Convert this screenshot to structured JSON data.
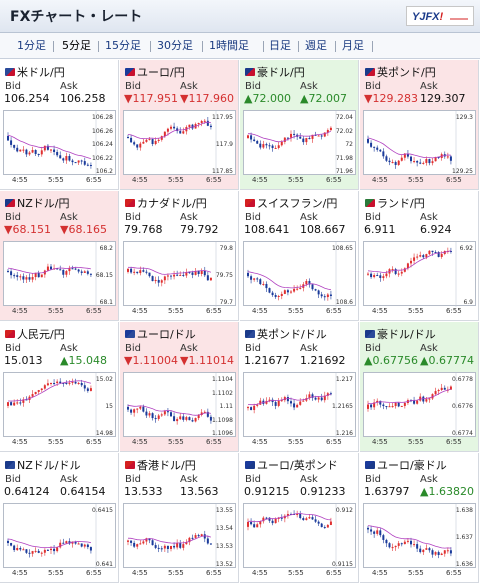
{
  "header": {
    "title": "FXチャート・レート",
    "logo": "YJFX!"
  },
  "tabs": [
    "1分足",
    "5分足",
    "15分足",
    "30分足",
    "1時間足",
    "日足",
    "週足",
    "月足"
  ],
  "labels": {
    "bid": "Bid",
    "ask": "Ask"
  },
  "pairs": [
    {
      "name": "米ドル/円",
      "flag": [
        "#2a4a9a",
        "#c8102e"
      ],
      "bid": "106.254",
      "ask": "106.258",
      "bid_dir": "",
      "ask_dir": "",
      "yticks": [
        "106.28",
        "106.26",
        "106.24",
        "106.22",
        "106.2"
      ],
      "xticks": [
        "4:55",
        "5:55",
        "6:55"
      ],
      "state": "flat"
    },
    {
      "name": "ユーロ/円",
      "flag": [
        "#1a3a9a",
        "#c8102e"
      ],
      "bid": "▼117.951",
      "ask": "▼117.960",
      "bid_dir": "down",
      "ask_dir": "down",
      "yticks": [
        "117.95",
        "117.9",
        "117.85"
      ],
      "xticks": [
        "4:55",
        "5:55",
        "6:55"
      ],
      "state": "down"
    },
    {
      "name": "豪ドル/円",
      "flag": [
        "#1a3a8a",
        "#c8102e"
      ],
      "bid": "▲72.000",
      "ask": "▲72.007",
      "bid_dir": "up",
      "ask_dir": "up",
      "yticks": [
        "72.04",
        "72.02",
        "72",
        "71.98",
        "71.96"
      ],
      "xticks": [
        "4:55",
        "5:55",
        "6:55"
      ],
      "state": "up"
    },
    {
      "name": "英ポンド/円",
      "flag": [
        "#1a3a8a",
        "#c8102e"
      ],
      "bid": "▼129.283",
      "ask": "129.307",
      "bid_dir": "down",
      "ask_dir": "",
      "yticks": [
        "129.3",
        "129.25"
      ],
      "xticks": [
        "4:55",
        "5:55",
        "6:55"
      ],
      "state": "down"
    },
    {
      "name": "NZドル/円",
      "flag": [
        "#1a3a8a",
        "#c8102e"
      ],
      "bid": "▼68.151",
      "ask": "▼68.165",
      "bid_dir": "down",
      "ask_dir": "down",
      "yticks": [
        "68.2",
        "68.15",
        "68.1"
      ],
      "xticks": [
        "4:55",
        "5:55",
        "6:55"
      ],
      "state": "down"
    },
    {
      "name": "カナダドル/円",
      "flag": [
        "#d42020",
        "#c8102e"
      ],
      "bid": "79.768",
      "ask": "79.792",
      "bid_dir": "",
      "ask_dir": "",
      "yticks": [
        "79.8",
        "79.75",
        "79.7"
      ],
      "xticks": [
        "4:55",
        "5:55",
        "6:55"
      ],
      "state": "flat"
    },
    {
      "name": "スイスフラン/円",
      "flag": [
        "#d42020",
        "#c8102e"
      ],
      "bid": "108.641",
      "ask": "108.667",
      "bid_dir": "",
      "ask_dir": "",
      "yticks": [
        "108.65",
        "108.6"
      ],
      "xticks": [
        "4:55",
        "5:55",
        "6:55"
      ],
      "state": "flat"
    },
    {
      "name": "ランド/円",
      "flag": [
        "#2a7a3a",
        "#c8102e"
      ],
      "bid": "6.911",
      "ask": "6.924",
      "bid_dir": "",
      "ask_dir": "",
      "yticks": [
        "6.92",
        "6.9"
      ],
      "xticks": [
        "4:55",
        "5:55",
        "6:55"
      ],
      "state": "flat"
    },
    {
      "name": "人民元/円",
      "flag": [
        "#d42020",
        "#c8102e"
      ],
      "bid": "15.013",
      "ask": "▲15.048",
      "bid_dir": "",
      "ask_dir": "up",
      "yticks": [
        "15.02",
        "15",
        "14.98"
      ],
      "xticks": [
        "4:55",
        "5:55",
        "6:55"
      ],
      "state": "flat"
    },
    {
      "name": "ユーロ/ドル",
      "flag": [
        "#1a3a9a",
        "#2a4a9a"
      ],
      "bid": "▼1.11004",
      "ask": "▼1.11014",
      "bid_dir": "down",
      "ask_dir": "down",
      "yticks": [
        "1.1104",
        "1.1102",
        "1.11",
        "1.1098",
        "1.1096"
      ],
      "xticks": [
        "4:55",
        "5:55",
        "6:55"
      ],
      "state": "down"
    },
    {
      "name": "英ポンド/ドル",
      "flag": [
        "#1a3a8a",
        "#2a4a9a"
      ],
      "bid": "1.21677",
      "ask": "1.21692",
      "bid_dir": "",
      "ask_dir": "",
      "yticks": [
        "1.217",
        "1.2165",
        "1.216"
      ],
      "xticks": [
        "4:55",
        "5:55",
        "6:55"
      ],
      "state": "flat"
    },
    {
      "name": "豪ドル/ドル",
      "flag": [
        "#1a3a8a",
        "#2a4a9a"
      ],
      "bid": "▲0.67756",
      "ask": "▲0.67774",
      "bid_dir": "up",
      "ask_dir": "up",
      "yticks": [
        "0.6778",
        "0.6776",
        "0.6774"
      ],
      "xticks": [
        "4:55",
        "5:55",
        "6:55"
      ],
      "state": "up"
    },
    {
      "name": "NZドル/ドル",
      "flag": [
        "#1a3a8a",
        "#2a4a9a"
      ],
      "bid": "0.64124",
      "ask": "0.64154",
      "bid_dir": "",
      "ask_dir": "",
      "yticks": [
        "0.6415",
        "0.641"
      ],
      "xticks": [
        "4:55",
        "5:55",
        "6:55"
      ],
      "state": "flat"
    },
    {
      "name": "香港ドル/円",
      "flag": [
        "#d42020",
        "#c8102e"
      ],
      "bid": "13.533",
      "ask": "13.563",
      "bid_dir": "",
      "ask_dir": "",
      "yticks": [
        "13.55",
        "13.54",
        "13.53",
        "13.52"
      ],
      "xticks": [
        "4:55",
        "5:55",
        "6:55"
      ],
      "state": "flat"
    },
    {
      "name": "ユーロ/英ポンド",
      "flag": [
        "#1a3a9a",
        "#1a3a8a"
      ],
      "bid": "0.91215",
      "ask": "0.91233",
      "bid_dir": "",
      "ask_dir": "",
      "yticks": [
        "0.912",
        "0.9115"
      ],
      "xticks": [
        "4:55",
        "5:55",
        "6:55"
      ],
      "state": "flat"
    },
    {
      "name": "ユーロ/豪ドル",
      "flag": [
        "#1a3a9a",
        "#1a3a8a"
      ],
      "bid": "1.63797",
      "ask": "▲1.63820",
      "bid_dir": "",
      "ask_dir": "up",
      "yticks": [
        "1.638",
        "1.637",
        "1.636"
      ],
      "xticks": [
        "4:55",
        "5:55",
        "6:55"
      ],
      "state": "flat"
    }
  ],
  "colors": {
    "up_candle": "#e03030",
    "down_candle": "#1a3a9a",
    "ma_line": "#b040c0",
    "down_text": "#d43030",
    "up_text": "#2a8a2a",
    "down_bg": "#fbe4e6",
    "up_bg": "#e4f6e2"
  }
}
